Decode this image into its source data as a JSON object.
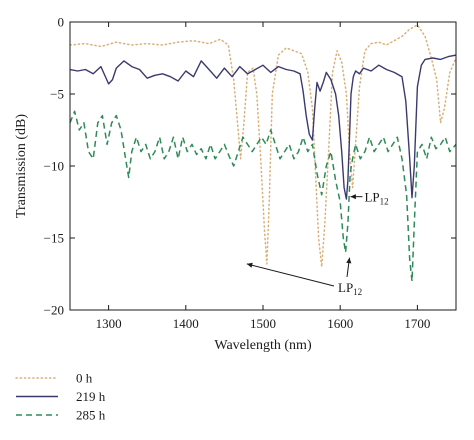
{
  "chart_data": {
    "type": "line",
    "xlabel": "Wavelength (nm)",
    "ylabel": "Transmission (dB)",
    "xlim": [
      1250,
      1750
    ],
    "ylim": [
      -20,
      0
    ],
    "x_ticks": [
      1300,
      1400,
      1500,
      1600,
      1700
    ],
    "y_ticks": [
      0,
      -5,
      -10,
      -15,
      -20
    ],
    "x_tick_labels": [
      "1300",
      "1400",
      "1500",
      "1600",
      "1700"
    ],
    "y_tick_labels": [
      "0",
      "−5",
      "−10",
      "−15",
      "−20"
    ],
    "grid": false,
    "legend_position": "bottom-left, below plot",
    "annotations": [
      {
        "label": "LP",
        "subscript": "12",
        "point": [
          1612,
          -12.2
        ]
      },
      {
        "label": "LP",
        "subscript": "12",
        "points": [
          [
            1505,
            -16.8
          ],
          [
            1612,
            -16.3
          ]
        ]
      }
    ],
    "series": [
      {
        "name": "0 h",
        "color": "#d9b07a",
        "style": "dotted",
        "x": [
          1250,
          1270,
          1290,
          1310,
          1330,
          1350,
          1370,
          1390,
          1410,
          1430,
          1445,
          1455,
          1462,
          1467,
          1471,
          1475,
          1480,
          1487,
          1492,
          1497,
          1502,
          1505,
          1508,
          1512,
          1520,
          1530,
          1540,
          1550,
          1558,
          1564,
          1568,
          1572,
          1576,
          1580,
          1585,
          1590,
          1596,
          1602,
          1608,
          1612,
          1616,
          1620,
          1625,
          1632,
          1640,
          1650,
          1660,
          1670,
          1680,
          1690,
          1700,
          1710,
          1718,
          1725,
          1730,
          1735,
          1742,
          1750
        ],
        "y": [
          -1.6,
          -1.5,
          -1.7,
          -1.4,
          -1.6,
          -1.5,
          -1.6,
          -1.4,
          -1.3,
          -1.5,
          -1.2,
          -1.6,
          -4.0,
          -7.0,
          -9.5,
          -7.2,
          -3.5,
          -3.2,
          -5.0,
          -9.5,
          -14.5,
          -16.8,
          -12.5,
          -5.0,
          -2.3,
          -1.8,
          -2.0,
          -2.2,
          -3.5,
          -6.0,
          -10.5,
          -15.0,
          -17.0,
          -14.0,
          -9.0,
          -3.5,
          -2.0,
          -2.8,
          -5.0,
          -9.0,
          -11.5,
          -8.5,
          -4.5,
          -2.0,
          -1.5,
          -1.4,
          -1.6,
          -1.3,
          -1.0,
          -0.5,
          -0.2,
          -1.0,
          -2.5,
          -4.0,
          -7.0,
          -6.0,
          -3.5,
          -2.5
        ]
      },
      {
        "name": "219 h",
        "color": "#3b3a6e",
        "style": "solid",
        "x": [
          1250,
          1260,
          1270,
          1280,
          1290,
          1300,
          1305,
          1310,
          1320,
          1330,
          1340,
          1350,
          1360,
          1370,
          1380,
          1390,
          1400,
          1410,
          1420,
          1430,
          1440,
          1450,
          1460,
          1470,
          1480,
          1490,
          1500,
          1510,
          1520,
          1530,
          1540,
          1548,
          1552,
          1556,
          1560,
          1564,
          1567,
          1570,
          1574,
          1578,
          1582,
          1588,
          1594,
          1598,
          1602,
          1605,
          1608,
          1610,
          1612,
          1614,
          1617,
          1620,
          1625,
          1630,
          1640,
          1650,
          1660,
          1670,
          1680,
          1685,
          1690,
          1693,
          1696,
          1700,
          1705,
          1710,
          1720,
          1730,
          1740,
          1750
        ],
        "y": [
          -3.3,
          -3.4,
          -3.3,
          -3.6,
          -3.1,
          -4.3,
          -4.0,
          -3.2,
          -2.7,
          -3.1,
          -3.3,
          -3.9,
          -3.7,
          -3.6,
          -3.8,
          -4.1,
          -3.4,
          -3.8,
          -2.7,
          -3.3,
          -3.9,
          -3.2,
          -3.8,
          -3.1,
          -3.6,
          -3.3,
          -3.0,
          -3.5,
          -3.1,
          -3.3,
          -3.4,
          -3.6,
          -4.8,
          -6.5,
          -7.8,
          -8.2,
          -6.0,
          -4.2,
          -4.8,
          -4.2,
          -3.5,
          -4.0,
          -5.0,
          -6.5,
          -9.0,
          -11.5,
          -12.3,
          -11.0,
          -8.0,
          -5.0,
          -3.8,
          -3.4,
          -3.6,
          -3.2,
          -3.4,
          -3.0,
          -3.3,
          -3.5,
          -3.8,
          -5.5,
          -9.5,
          -12.2,
          -10.0,
          -4.5,
          -3.0,
          -2.6,
          -2.5,
          -2.6,
          -2.4,
          -2.3
        ]
      },
      {
        "name": "285 h",
        "color": "#2e8b57",
        "style": "dashed",
        "x": [
          1250,
          1256,
          1262,
          1268,
          1274,
          1280,
          1286,
          1292,
          1298,
          1304,
          1310,
          1316,
          1322,
          1326,
          1330,
          1336,
          1342,
          1348,
          1354,
          1360,
          1366,
          1372,
          1378,
          1384,
          1390,
          1396,
          1402,
          1408,
          1414,
          1420,
          1426,
          1432,
          1438,
          1444,
          1450,
          1456,
          1462,
          1468,
          1474,
          1480,
          1486,
          1492,
          1498,
          1504,
          1510,
          1516,
          1522,
          1528,
          1534,
          1540,
          1546,
          1552,
          1558,
          1564,
          1570,
          1576,
          1582,
          1588,
          1594,
          1600,
          1604,
          1607,
          1610,
          1613,
          1616,
          1620,
          1626,
          1632,
          1638,
          1644,
          1650,
          1656,
          1662,
          1668,
          1674,
          1680,
          1686,
          1690,
          1693,
          1696,
          1700,
          1706,
          1712,
          1718,
          1724,
          1730,
          1736,
          1742,
          1750
        ],
        "y": [
          -7.0,
          -6.2,
          -7.5,
          -7.0,
          -9.0,
          -9.5,
          -7.0,
          -6.5,
          -8.5,
          -7.0,
          -6.5,
          -7.5,
          -9.5,
          -10.8,
          -9.0,
          -8.0,
          -9.0,
          -8.5,
          -9.5,
          -9.0,
          -8.0,
          -9.5,
          -9.0,
          -8.0,
          -9.5,
          -8.0,
          -9.0,
          -8.5,
          -9.2,
          -8.8,
          -9.5,
          -8.5,
          -9.5,
          -9.0,
          -8.5,
          -9.3,
          -10.0,
          -9.0,
          -8.0,
          -8.5,
          -9.0,
          -8.5,
          -8.0,
          -8.5,
          -7.5,
          -8.5,
          -9.5,
          -9.0,
          -8.5,
          -9.5,
          -9.0,
          -8.0,
          -9.0,
          -8.5,
          -10.5,
          -12.0,
          -10.0,
          -9.0,
          -11.0,
          -12.5,
          -15.0,
          -16.0,
          -14.0,
          -10.5,
          -9.5,
          -8.5,
          -9.5,
          -9.0,
          -8.0,
          -9.0,
          -8.5,
          -8.0,
          -9.0,
          -8.5,
          -8.0,
          -9.5,
          -12.0,
          -16.5,
          -18.0,
          -14.0,
          -9.0,
          -8.5,
          -9.5,
          -8.0,
          -8.8,
          -8.5,
          -8.0,
          -9.0,
          -8.5
        ]
      }
    ]
  }
}
